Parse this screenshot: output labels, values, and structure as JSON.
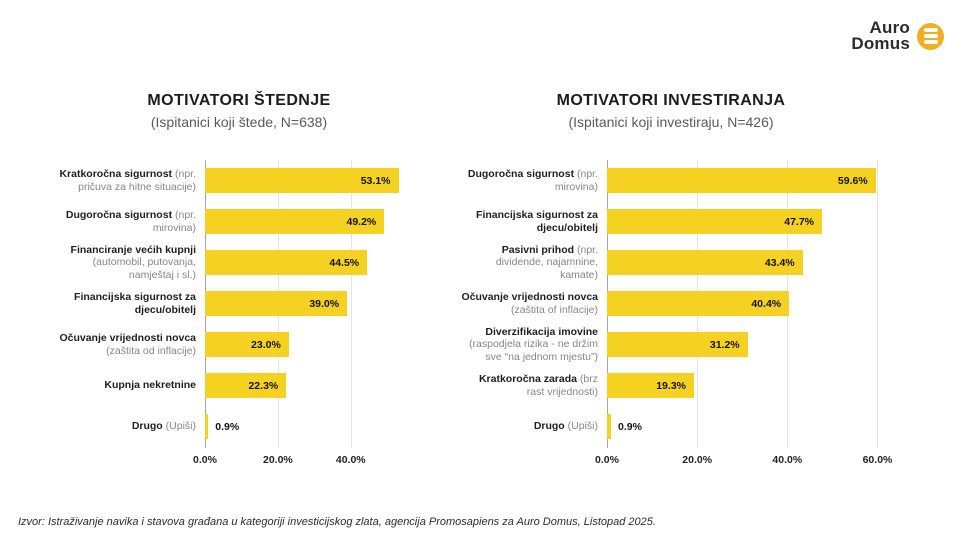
{
  "logo": {
    "line1": "Auro",
    "line2": "Domus",
    "icon": "menu-circle-icon",
    "circle_color": "#F0AE23",
    "text_color": "#2B2B2B"
  },
  "chart_data": [
    {
      "type": "bar",
      "orientation": "horizontal",
      "title": "MOTIVATORI ŠTEDNJE",
      "subtitle": "(Ispitanici koji štede, N=638)",
      "categories": [
        "Kratkoročna sigurnost",
        "Dugoročna sigurnost",
        "Financiranje većih kupnji",
        "Financijska sigurnost za djecu/obitelj",
        "Očuvanje vrijednosti novca",
        "Kupnja nekretnine",
        "Drugo"
      ],
      "sublabels": [
        "(npr. pričuva za hitne situacije)",
        "(npr. mirovina)",
        "(automobil, putovanja, namještaj i sl.)",
        "",
        "(zaštita od inflacije)",
        "",
        "(Upiši)"
      ],
      "values": [
        53.1,
        49.2,
        44.5,
        39.0,
        23.0,
        22.3,
        0.9
      ],
      "value_labels": [
        "53.1%",
        "49.2%",
        "44.5%",
        "39.0%",
        "23.0%",
        "22.3%",
        "0.9%"
      ],
      "xtick_labels": [
        "0.0%",
        "20.0%",
        "40.0%"
      ],
      "xtick_values": [
        0,
        20,
        40
      ],
      "xlim": [
        0,
        59
      ],
      "bar_color": "#F5D122",
      "grid": true,
      "legend": false
    },
    {
      "type": "bar",
      "orientation": "horizontal",
      "title": "MOTIVATORI INVESTIRANJA",
      "subtitle": "(Ispitanici koji investiraju, N=426)",
      "categories": [
        "Dugoročna sigurnost",
        "Financijska sigurnost za djecu/obitelj",
        "Pasivni prihod",
        "Očuvanje vrijednosti novca",
        "Diverzifikacija imovine",
        "Kratkoročna zarada",
        "Drugo"
      ],
      "sublabels": [
        "(npr. mirovina)",
        "",
        "(npr. dividende, najamnine, kamate)",
        "(zaštita of inflacije)",
        "(raspodjela rizika - ne držim sve “na jednom mjestu”)",
        "(brz rast vrijednosti)",
        "(Upiši)"
      ],
      "values": [
        59.6,
        47.7,
        43.4,
        40.4,
        31.2,
        19.3,
        0.9
      ],
      "value_labels": [
        "59.6%",
        "47.7%",
        "43.4%",
        "40.4%",
        "31.2%",
        "19.3%",
        "0.9%"
      ],
      "xtick_labels": [
        "0.0%",
        "20.0%",
        "40.0%",
        "60.0%"
      ],
      "xtick_values": [
        0,
        20,
        40,
        60
      ],
      "xlim": [
        0,
        61
      ],
      "bar_color": "#F5D122",
      "grid": true,
      "legend": false
    }
  ],
  "source": "Izvor: Istraživanje navika i stavova građana u kategoriji investicijskog zlata, agencija Promosapiens za Auro Domus, Listopad 2025."
}
